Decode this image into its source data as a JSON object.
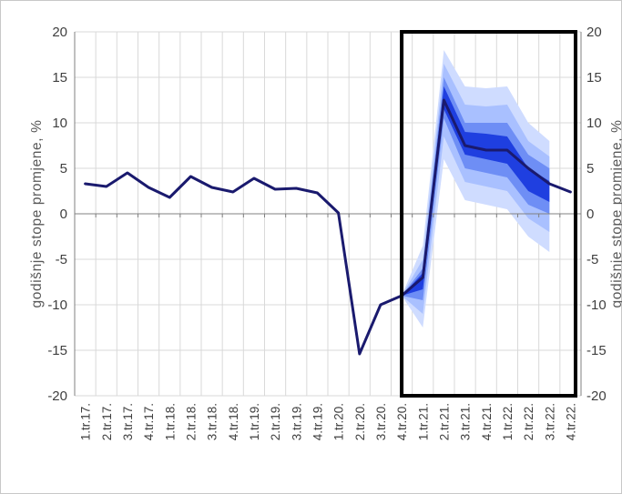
{
  "chart_data": {
    "type": "line",
    "title": "",
    "xlabel": "",
    "ylabel": "godišnje stope promjene, %",
    "ylabel_right": "godišnje stope promjene, %",
    "ylim": [
      -20,
      20
    ],
    "yticks": [
      20,
      15,
      10,
      5,
      0,
      -5,
      -10,
      -15,
      -20
    ],
    "grid": true,
    "legend": "none",
    "categories": [
      "1.tr.17.",
      "2.tr.17.",
      "3.tr.17.",
      "4.tr.17.",
      "1.tr.18.",
      "2.tr.18.",
      "3.tr.18.",
      "4.tr.18.",
      "1.tr.19.",
      "2.tr.19.",
      "3.tr.19.",
      "4.tr.19.",
      "1.tr.20.",
      "2.tr.20.",
      "3.tr.20.",
      "4.tr.20.",
      "1.tr.21.",
      "2.tr.21.",
      "3.tr.21.",
      "4.tr.21.",
      "1.tr.22.",
      "2.tr.22.",
      "3.tr.22.",
      "4.tr.22."
    ],
    "series": [
      {
        "values": [
          3.3,
          3.0,
          4.5,
          2.9,
          1.8,
          4.1,
          2.9,
          2.4,
          3.9,
          2.7,
          2.8,
          2.3,
          0.1,
          -15.4,
          -10.0,
          -9.0,
          -7.0,
          12.5,
          7.5,
          7.0,
          7.0,
          5.0,
          3.3,
          2.4
        ],
        "color": "#1a1a6e"
      }
    ],
    "fan": {
      "start_index": 15,
      "bands": [
        {
          "color": "#cfdcff",
          "lower": [
            -9.0,
            -12.5,
            6.0,
            1.5,
            1.0,
            0.5,
            -2.5,
            -4.2
          ],
          "upper": [
            -9.0,
            -3.5,
            18.0,
            14.0,
            13.8,
            14.0,
            10.0,
            8.0
          ]
        },
        {
          "color": "#a9c0ff",
          "lower": [
            -9.0,
            -11.0,
            8.5,
            3.5,
            3.0,
            2.5,
            -0.5,
            -2.0
          ],
          "upper": [
            -9.0,
            -5.0,
            16.5,
            12.0,
            11.8,
            12.0,
            8.0,
            6.3
          ]
        },
        {
          "color": "#6e8ef5",
          "lower": [
            -9.0,
            -9.5,
            10.5,
            5.0,
            4.5,
            4.0,
            1.0,
            0.0
          ],
          "upper": [
            -9.0,
            -6.0,
            15.0,
            10.0,
            10.0,
            10.0,
            6.5,
            5.0
          ]
        },
        {
          "color": "#1f3fe0",
          "lower": [
            -9.0,
            -8.3,
            11.5,
            6.5,
            6.0,
            5.5,
            2.5,
            1.3
          ],
          "upper": [
            -9.0,
            -6.5,
            14.0,
            9.0,
            8.8,
            8.5,
            5.0,
            3.6
          ]
        }
      ]
    },
    "highlight_box": {
      "from_category": "4.tr.20.",
      "to_category": "4.tr.22.",
      "color": "#000000"
    }
  }
}
